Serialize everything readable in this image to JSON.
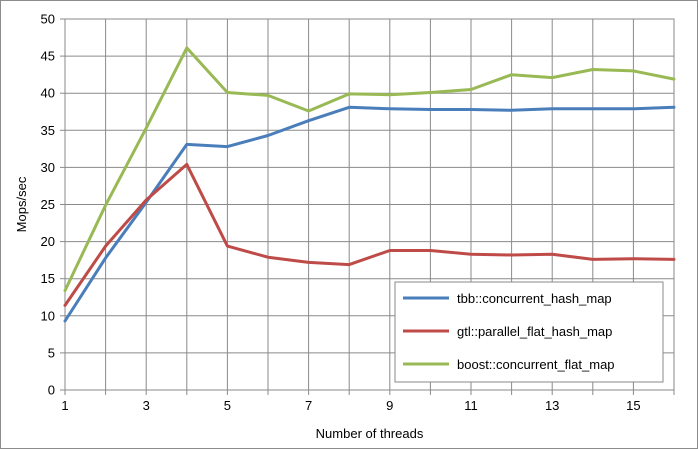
{
  "chart_data": {
    "type": "line",
    "title": "",
    "xlabel": "Number of threads",
    "ylabel": "Mops/sec",
    "xlim": [
      1,
      16
    ],
    "ylim": [
      0,
      50
    ],
    "x_ticks": [
      1,
      3,
      5,
      7,
      9,
      11,
      13,
      15
    ],
    "y_ticks": [
      0,
      5,
      10,
      15,
      20,
      25,
      30,
      35,
      40,
      45,
      50
    ],
    "grid": true,
    "legend_position": "bottom-right",
    "x": [
      1,
      2,
      3,
      4,
      5,
      6,
      7,
      8,
      9,
      10,
      11,
      12,
      13,
      14,
      15,
      16
    ],
    "series": [
      {
        "name": "tbb::concurrent_hash_map",
        "color": "#4a7ebb",
        "values": [
          9.3,
          17.8,
          25.3,
          33.1,
          32.8,
          34.3,
          36.3,
          38.1,
          37.9,
          37.8,
          37.8,
          37.7,
          37.9,
          37.9,
          37.9,
          38.1
        ]
      },
      {
        "name": "gtl::parallel_flat_hash_map",
        "color": "#be4b48",
        "values": [
          11.4,
          19.4,
          25.6,
          30.4,
          19.4,
          17.9,
          17.2,
          16.9,
          18.8,
          18.8,
          18.3,
          18.2,
          18.3,
          17.6,
          17.7,
          17.6
        ]
      },
      {
        "name": "boost::concurrent_flat_map",
        "color": "#98b954",
        "values": [
          13.4,
          24.9,
          35.3,
          46.1,
          40.1,
          39.7,
          37.6,
          39.9,
          39.8,
          40.1,
          40.5,
          42.5,
          42.1,
          43.2,
          43.0,
          41.9
        ]
      }
    ]
  }
}
